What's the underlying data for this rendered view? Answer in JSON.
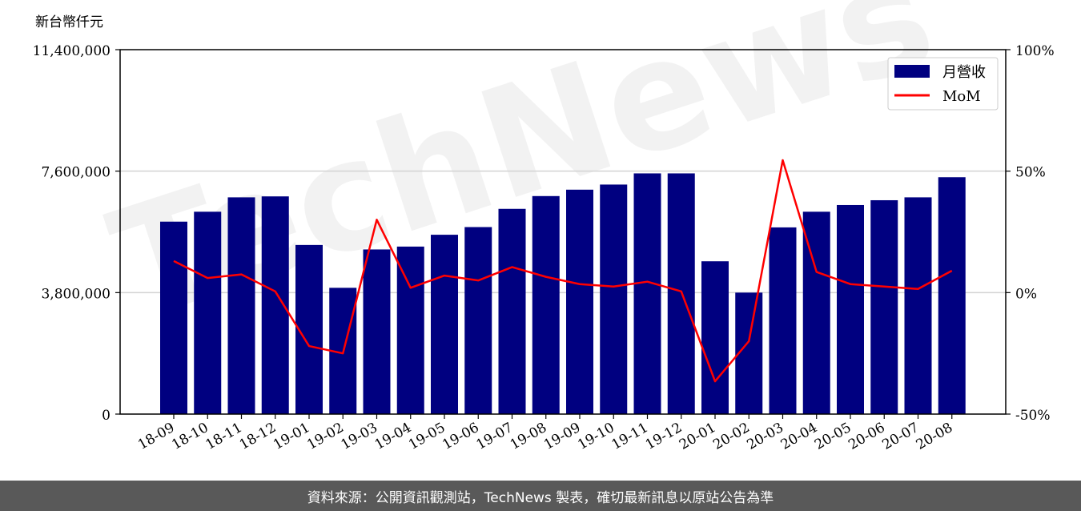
{
  "unit_label": "新台幣仟元",
  "footer_note": "資料來源：公開資訊觀測站，TechNews 製表，確切最新訊息以原站公告為準",
  "watermark": "TechNews",
  "colors": {
    "bar": "#000080",
    "line": "#ff0000",
    "grid": "#d3d3d3"
  },
  "chart_data": {
    "type": "bar",
    "categories": [
      "18-09",
      "18-10",
      "18-11",
      "18-12",
      "19-01",
      "19-02",
      "19-03",
      "19-04",
      "19-05",
      "19-06",
      "19-07",
      "19-08",
      "19-09",
      "19-10",
      "19-11",
      "19-12",
      "20-01",
      "20-02",
      "20-03",
      "20-04",
      "20-05",
      "20-06",
      "20-07",
      "20-08"
    ],
    "series": [
      {
        "name": "月營收",
        "type": "bar",
        "axis": "left",
        "values": [
          6020000,
          6330000,
          6780000,
          6810000,
          5290000,
          3950000,
          5150000,
          5240000,
          5610000,
          5850000,
          6420000,
          6820000,
          7020000,
          7180000,
          7530000,
          7530000,
          4780000,
          3800000,
          5840000,
          6330000,
          6540000,
          6690000,
          6780000,
          7410000
        ]
      },
      {
        "name": "MoM",
        "type": "line",
        "axis": "right",
        "values": [
          13,
          6,
          7.5,
          0.5,
          -22,
          -25,
          30,
          2,
          7,
          5,
          10.5,
          6.5,
          3.5,
          2.5,
          4.5,
          0.5,
          -36.5,
          -20,
          54.5,
          8.5,
          3.5,
          2.5,
          1.5,
          9
        ]
      }
    ],
    "left_axis": {
      "min": 0,
      "max": 11400000,
      "ticks": [
        "0",
        "3,800,000",
        "7,600,000",
        "11,400,000"
      ],
      "tick_values": [
        0,
        3800000,
        7600000,
        11400000
      ]
    },
    "right_axis": {
      "min": -50,
      "max": 100,
      "ticks": [
        "-50%",
        "0%",
        "50%",
        "100%"
      ],
      "tick_values": [
        -50,
        0,
        50,
        100
      ]
    },
    "grid": "horizontal",
    "legend_position": "top-right"
  }
}
